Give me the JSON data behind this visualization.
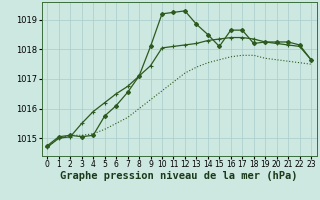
{
  "title": "Graphe pression niveau de la mer (hPa)",
  "bg_color": "#cce8e0",
  "grid_color": "#aacccc",
  "line_color": "#2d5a1e",
  "xlim": [
    -0.5,
    23.5
  ],
  "ylim": [
    1014.4,
    1019.6
  ],
  "yticks": [
    1015,
    1016,
    1017,
    1018,
    1019
  ],
  "xticks": [
    0,
    1,
    2,
    3,
    4,
    5,
    6,
    7,
    8,
    9,
    10,
    11,
    12,
    13,
    14,
    15,
    16,
    17,
    18,
    19,
    20,
    21,
    22,
    23
  ],
  "series_dotted": {
    "x": [
      0,
      1,
      2,
      3,
      4,
      5,
      6,
      7,
      8,
      9,
      10,
      11,
      12,
      13,
      14,
      15,
      16,
      17,
      18,
      19,
      20,
      21,
      22,
      23
    ],
    "y": [
      1014.7,
      1015.0,
      1015.1,
      1015.1,
      1015.15,
      1015.3,
      1015.5,
      1015.7,
      1016.0,
      1016.3,
      1016.6,
      1016.9,
      1017.2,
      1017.4,
      1017.55,
      1017.65,
      1017.75,
      1017.8,
      1017.8,
      1017.7,
      1017.65,
      1017.6,
      1017.55,
      1017.5
    ]
  },
  "series_solid_smooth": {
    "x": [
      0,
      1,
      2,
      3,
      4,
      5,
      6,
      7,
      8,
      9,
      10,
      11,
      12,
      13,
      14,
      15,
      16,
      17,
      18,
      19,
      20,
      21,
      22,
      23
    ],
    "y": [
      1014.7,
      1015.0,
      1015.05,
      1015.5,
      1015.9,
      1016.2,
      1016.5,
      1016.75,
      1017.1,
      1017.45,
      1018.05,
      1018.1,
      1018.15,
      1018.2,
      1018.3,
      1018.35,
      1018.4,
      1018.4,
      1018.35,
      1018.25,
      1018.2,
      1018.15,
      1018.1,
      1017.65
    ]
  },
  "series_markers": {
    "x": [
      0,
      1,
      2,
      3,
      4,
      5,
      6,
      7,
      8,
      9,
      10,
      11,
      12,
      13,
      14,
      15,
      16,
      17,
      18,
      19,
      20,
      21,
      22,
      23
    ],
    "y": [
      1014.75,
      1015.05,
      1015.1,
      1015.05,
      1015.1,
      1015.75,
      1016.1,
      1016.55,
      1017.1,
      1018.1,
      1019.2,
      1019.25,
      1019.3,
      1018.85,
      1018.5,
      1018.1,
      1018.65,
      1018.65,
      1018.2,
      1018.25,
      1018.25,
      1018.25,
      1018.15,
      1017.65
    ]
  },
  "xlabel_fontsize": 7.5,
  "tick_fontsize": 6,
  "xtick_fontsize": 5.5
}
